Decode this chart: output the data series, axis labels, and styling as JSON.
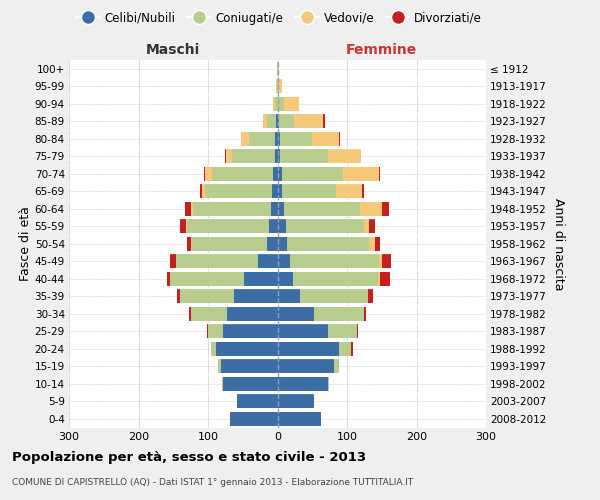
{
  "age_groups": [
    "0-4",
    "5-9",
    "10-14",
    "15-19",
    "20-24",
    "25-29",
    "30-34",
    "35-39",
    "40-44",
    "45-49",
    "50-54",
    "55-59",
    "60-64",
    "65-69",
    "70-74",
    "75-79",
    "80-84",
    "85-89",
    "90-94",
    "95-99",
    "100+"
  ],
  "birth_years": [
    "2008-2012",
    "2003-2007",
    "1998-2002",
    "1993-1997",
    "1988-1992",
    "1983-1987",
    "1978-1982",
    "1973-1977",
    "1968-1972",
    "1963-1967",
    "1958-1962",
    "1953-1957",
    "1948-1952",
    "1943-1947",
    "1938-1942",
    "1933-1937",
    "1928-1932",
    "1923-1927",
    "1918-1922",
    "1913-1917",
    "≤ 1912"
  ],
  "males_celibe": [
    68,
    58,
    78,
    82,
    88,
    78,
    72,
    62,
    48,
    28,
    15,
    12,
    10,
    8,
    6,
    4,
    3,
    2,
    0,
    0,
    0
  ],
  "males_coniugato": [
    0,
    0,
    2,
    4,
    8,
    22,
    52,
    78,
    106,
    118,
    108,
    118,
    112,
    96,
    88,
    62,
    38,
    13,
    4,
    1,
    1
  ],
  "males_vedovo": [
    0,
    0,
    0,
    0,
    0,
    0,
    0,
    0,
    0,
    0,
    2,
    2,
    3,
    4,
    10,
    8,
    12,
    6,
    2,
    1,
    0
  ],
  "males_divorziato": [
    0,
    0,
    0,
    0,
    0,
    2,
    3,
    5,
    5,
    8,
    5,
    8,
    8,
    4,
    2,
    2,
    0,
    0,
    0,
    0,
    0
  ],
  "females_nubile": [
    62,
    52,
    72,
    82,
    88,
    72,
    52,
    32,
    22,
    18,
    14,
    12,
    10,
    6,
    6,
    4,
    4,
    2,
    1,
    0,
    0
  ],
  "females_coniugata": [
    0,
    0,
    2,
    6,
    18,
    42,
    72,
    98,
    122,
    128,
    118,
    112,
    108,
    78,
    88,
    68,
    46,
    22,
    8,
    2,
    1
  ],
  "females_vedova": [
    0,
    0,
    0,
    0,
    0,
    0,
    0,
    0,
    4,
    4,
    8,
    8,
    32,
    38,
    52,
    48,
    38,
    42,
    22,
    4,
    0
  ],
  "females_divorziata": [
    0,
    0,
    0,
    0,
    2,
    2,
    4,
    8,
    14,
    14,
    8,
    8,
    10,
    2,
    2,
    0,
    2,
    2,
    0,
    0,
    0
  ],
  "colors_celibe": "#3c6ea5",
  "colors_coniugato": "#b8cc8e",
  "colors_vedovo": "#f5c87a",
  "colors_divorziato": "#c42020",
  "xlim": 300,
  "title": "Popolazione per età, sesso e stato civile - 2013",
  "subtitle": "COMUNE DI CAPISTRELLO (AQ) - Dati ISTAT 1° gennaio 2013 - Elaborazione TUTTITALIA.IT",
  "ylabel_left": "Fasce di età",
  "ylabel_right": "Anni di nascita",
  "label_maschi": "Maschi",
  "label_femmine": "Femmine",
  "legend_labels": [
    "Celibi/Nubili",
    "Coniugati/e",
    "Vedovi/e",
    "Divorziati/e"
  ],
  "bg_color": "#efefef",
  "plot_bg": "#ffffff"
}
